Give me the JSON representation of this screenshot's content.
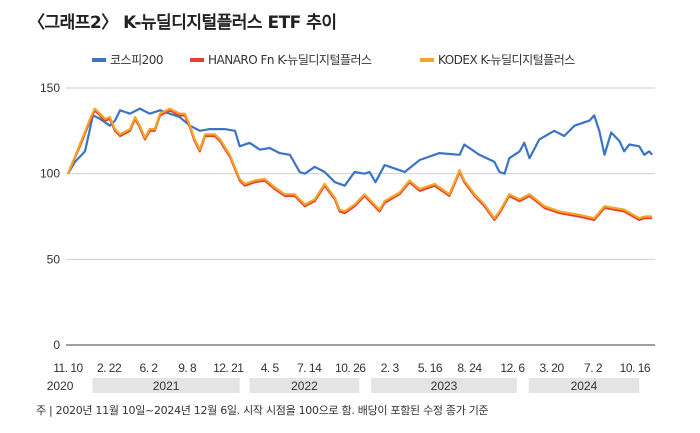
{
  "chart_data": {
    "type": "line",
    "title": "〈그래프2〉 K-뉴딜디지털플러스 ETF 추이",
    "xlabel": "",
    "ylabel": "",
    "x_unit": "days since 2020-11-10",
    "xlim": [
      0,
      1487
    ],
    "ylim": [
      0,
      150
    ],
    "yticks": [
      0,
      50,
      100,
      150
    ],
    "grid": true,
    "legend_position": "top",
    "xtick_labels": [
      {
        "day": 0,
        "label": "11. 10"
      },
      {
        "day": 104,
        "label": "2. 22"
      },
      {
        "day": 204,
        "label": "6. 2"
      },
      {
        "day": 302,
        "label": "9. 8"
      },
      {
        "day": 406,
        "label": "12. 21"
      },
      {
        "day": 511,
        "label": "4. 5"
      },
      {
        "day": 611,
        "label": "7. 14"
      },
      {
        "day": 715,
        "label": "10. 26"
      },
      {
        "day": 815,
        "label": "2. 3"
      },
      {
        "day": 917,
        "label": "5. 16"
      },
      {
        "day": 1017,
        "label": "8. 24"
      },
      {
        "day": 1126,
        "label": "12. 6"
      },
      {
        "day": 1225,
        "label": "3. 20"
      },
      {
        "day": 1330,
        "label": "7. 2"
      },
      {
        "day": 1436,
        "label": "10. 16"
      }
    ],
    "years": [
      {
        "label": "2020",
        "start": -65,
        "end": 25,
        "band": false
      },
      {
        "label": "2021",
        "start": 62,
        "end": 435,
        "band": true
      },
      {
        "label": "2022",
        "start": 460,
        "end": 738,
        "band": true
      },
      {
        "label": "2023",
        "start": 768,
        "end": 1137,
        "band": true
      },
      {
        "label": "2024",
        "start": 1167,
        "end": 1447,
        "band": true
      }
    ],
    "series": [
      {
        "name": "코스피200",
        "color": "#3b74c4",
        "points": [
          [
            0,
            100
          ],
          [
            18,
            107
          ],
          [
            43,
            113
          ],
          [
            63,
            134
          ],
          [
            81,
            132
          ],
          [
            106,
            128
          ],
          [
            119,
            131
          ],
          [
            132,
            137
          ],
          [
            157,
            135
          ],
          [
            182,
            138
          ],
          [
            207,
            135
          ],
          [
            233,
            137
          ],
          [
            258,
            135
          ],
          [
            283,
            133
          ],
          [
            309,
            128
          ],
          [
            334,
            125
          ],
          [
            359,
            126
          ],
          [
            397,
            126
          ],
          [
            423,
            125
          ],
          [
            435,
            116
          ],
          [
            460,
            118
          ],
          [
            486,
            114
          ],
          [
            511,
            115
          ],
          [
            536,
            112
          ],
          [
            562,
            111
          ],
          [
            587,
            101
          ],
          [
            600,
            100
          ],
          [
            625,
            104
          ],
          [
            650,
            101
          ],
          [
            676,
            95
          ],
          [
            701,
            93
          ],
          [
            726,
            101
          ],
          [
            751,
            100
          ],
          [
            764,
            101
          ],
          [
            779,
            95
          ],
          [
            802,
            105
          ],
          [
            840,
            102
          ],
          [
            853,
            101
          ],
          [
            891,
            108
          ],
          [
            941,
            112
          ],
          [
            992,
            111
          ],
          [
            1004,
            117
          ],
          [
            1042,
            111
          ],
          [
            1080,
            107
          ],
          [
            1093,
            101
          ],
          [
            1106,
            100
          ],
          [
            1118,
            109
          ],
          [
            1144,
            113
          ],
          [
            1156,
            118
          ],
          [
            1169,
            109
          ],
          [
            1194,
            120
          ],
          [
            1232,
            125
          ],
          [
            1257,
            122
          ],
          [
            1283,
            128
          ],
          [
            1321,
            131
          ],
          [
            1333,
            134
          ],
          [
            1346,
            125
          ],
          [
            1359,
            111
          ],
          [
            1376,
            124
          ],
          [
            1397,
            119
          ],
          [
            1409,
            113
          ],
          [
            1422,
            117
          ],
          [
            1447,
            116
          ],
          [
            1460,
            111
          ],
          [
            1472,
            113
          ],
          [
            1480,
            111
          ]
        ]
      },
      {
        "name": "HANARO Fn K-뉴딜디지털플러스",
        "color": "#e8402a",
        "points": [
          [
            0,
            100
          ],
          [
            30,
            116
          ],
          [
            56,
            131
          ],
          [
            68,
            137
          ],
          [
            81,
            134
          ],
          [
            94,
            131
          ],
          [
            106,
            132
          ],
          [
            119,
            125
          ],
          [
            132,
            122
          ],
          [
            157,
            125
          ],
          [
            170,
            132
          ],
          [
            182,
            127
          ],
          [
            195,
            120
          ],
          [
            207,
            125
          ],
          [
            220,
            125
          ],
          [
            233,
            134
          ],
          [
            258,
            137
          ],
          [
            283,
            134
          ],
          [
            296,
            134
          ],
          [
            309,
            127
          ],
          [
            321,
            119
          ],
          [
            334,
            113
          ],
          [
            347,
            122
          ],
          [
            372,
            122
          ],
          [
            385,
            119
          ],
          [
            410,
            110
          ],
          [
            435,
            96
          ],
          [
            448,
            93
          ],
          [
            473,
            95
          ],
          [
            498,
            96
          ],
          [
            524,
            91
          ],
          [
            549,
            87
          ],
          [
            574,
            87
          ],
          [
            600,
            81
          ],
          [
            625,
            84
          ],
          [
            650,
            93
          ],
          [
            676,
            85
          ],
          [
            688,
            78
          ],
          [
            701,
            77
          ],
          [
            726,
            81
          ],
          [
            751,
            87
          ],
          [
            764,
            84
          ],
          [
            789,
            78
          ],
          [
            802,
            83
          ],
          [
            840,
            88
          ],
          [
            865,
            95
          ],
          [
            891,
            90
          ],
          [
            929,
            93
          ],
          [
            966,
            87
          ],
          [
            992,
            101
          ],
          [
            1004,
            95
          ],
          [
            1030,
            87
          ],
          [
            1055,
            81
          ],
          [
            1080,
            73
          ],
          [
            1093,
            77
          ],
          [
            1118,
            87
          ],
          [
            1144,
            84
          ],
          [
            1169,
            87
          ],
          [
            1207,
            80
          ],
          [
            1245,
            77
          ],
          [
            1295,
            75
          ],
          [
            1333,
            73
          ],
          [
            1359,
            80
          ],
          [
            1409,
            78
          ],
          [
            1447,
            73
          ],
          [
            1460,
            74
          ],
          [
            1480,
            74
          ]
        ]
      },
      {
        "name": "KODEX K-뉴딜디지털플러스",
        "color": "#f2a52a",
        "points": [
          [
            0,
            100
          ],
          [
            30,
            117
          ],
          [
            56,
            132
          ],
          [
            68,
            138
          ],
          [
            81,
            135
          ],
          [
            94,
            132
          ],
          [
            106,
            133
          ],
          [
            119,
            126
          ],
          [
            132,
            123
          ],
          [
            157,
            126
          ],
          [
            170,
            133
          ],
          [
            182,
            128
          ],
          [
            195,
            121
          ],
          [
            207,
            126
          ],
          [
            220,
            126
          ],
          [
            233,
            135
          ],
          [
            258,
            138
          ],
          [
            283,
            135
          ],
          [
            296,
            135
          ],
          [
            309,
            128
          ],
          [
            321,
            120
          ],
          [
            334,
            114
          ],
          [
            347,
            123
          ],
          [
            372,
            123
          ],
          [
            385,
            120
          ],
          [
            410,
            111
          ],
          [
            435,
            97
          ],
          [
            448,
            94
          ],
          [
            473,
            96
          ],
          [
            498,
            97
          ],
          [
            524,
            92
          ],
          [
            549,
            88
          ],
          [
            574,
            88
          ],
          [
            600,
            82
          ],
          [
            625,
            85
          ],
          [
            650,
            94
          ],
          [
            676,
            86
          ],
          [
            688,
            79
          ],
          [
            701,
            78
          ],
          [
            726,
            82
          ],
          [
            751,
            88
          ],
          [
            764,
            85
          ],
          [
            789,
            79
          ],
          [
            802,
            84
          ],
          [
            840,
            89
          ],
          [
            865,
            96
          ],
          [
            891,
            91
          ],
          [
            929,
            94
          ],
          [
            966,
            88
          ],
          [
            992,
            102
          ],
          [
            1004,
            96
          ],
          [
            1030,
            88
          ],
          [
            1055,
            82
          ],
          [
            1080,
            74
          ],
          [
            1093,
            78
          ],
          [
            1118,
            88
          ],
          [
            1144,
            85
          ],
          [
            1169,
            88
          ],
          [
            1207,
            81
          ],
          [
            1245,
            78
          ],
          [
            1295,
            76
          ],
          [
            1333,
            74
          ],
          [
            1359,
            81
          ],
          [
            1409,
            79
          ],
          [
            1447,
            74
          ],
          [
            1460,
            75
          ],
          [
            1480,
            75
          ]
        ]
      }
    ],
    "footnote": "주 | 2020년 11월 10일~2024년 12월 6일. 시작 시점을 100으로 함. 배당이 포함된 수정 종가 기준"
  }
}
